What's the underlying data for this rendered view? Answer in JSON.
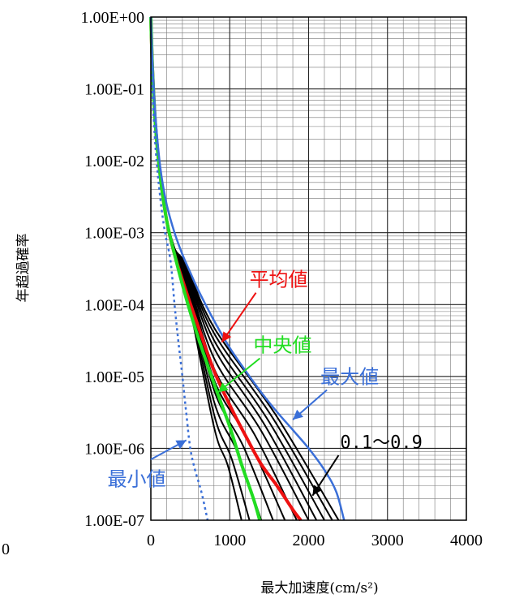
{
  "chart_data": {
    "type": "line",
    "xlabel": "最大加速度(cm/s²)",
    "ylabel": "年超過確率",
    "x_ticks": [
      "0",
      "1000",
      "2000",
      "3000",
      "4000"
    ],
    "extra_left_tick": "0",
    "y_ticks": [
      "1.00E+00",
      "1.00E-01",
      "1.00E-02",
      "1.00E-03",
      "1.00E-04",
      "1.00E-05",
      "1.00E-06",
      "1.00E-07"
    ],
    "xlim": [
      0,
      4000
    ],
    "ylim": [
      1e-07,
      1
    ],
    "yscale": "log",
    "grid": true,
    "series": [
      {
        "name": "平均値",
        "color": "#ee1111",
        "width": 4,
        "points": [
          [
            0,
            1
          ],
          [
            20,
            0.2
          ],
          [
            60,
            0.03
          ],
          [
            120,
            0.006
          ],
          [
            200,
            0.0015
          ],
          [
            300,
            0.0005
          ],
          [
            450,
            0.00015
          ],
          [
            600,
            5e-05
          ],
          [
            800,
            1.2e-05
          ],
          [
            1000,
            4e-06
          ],
          [
            1200,
            1.5e-06
          ],
          [
            1400,
            6e-07
          ],
          [
            1600,
            3e-07
          ],
          [
            1800,
            1.4e-07
          ],
          [
            1900,
            1e-07
          ]
        ]
      },
      {
        "name": "中央値",
        "color": "#22dd22",
        "width": 4,
        "points": [
          [
            0,
            1
          ],
          [
            20,
            0.2
          ],
          [
            60,
            0.03
          ],
          [
            120,
            0.006
          ],
          [
            200,
            0.0015
          ],
          [
            300,
            0.0005
          ],
          [
            450,
            0.00012
          ],
          [
            600,
            3.5e-05
          ],
          [
            800,
            8e-06
          ],
          [
            1000,
            2e-06
          ],
          [
            1150,
            6e-07
          ],
          [
            1300,
            2e-07
          ],
          [
            1380,
            1e-07
          ]
        ]
      },
      {
        "name": "最大値",
        "color": "#3a6fd8",
        "width": 2.5,
        "points": [
          [
            0,
            1
          ],
          [
            20,
            0.25
          ],
          [
            60,
            0.04
          ],
          [
            120,
            0.008
          ],
          [
            200,
            0.0025
          ],
          [
            300,
            0.001
          ],
          [
            400,
            0.0005
          ],
          [
            500,
            0.00028
          ],
          [
            600,
            0.00016
          ],
          [
            800,
            6e-05
          ],
          [
            1000,
            2.5e-05
          ],
          [
            1200,
            1.2e-05
          ],
          [
            1400,
            6e-06
          ],
          [
            1600,
            3.2e-06
          ],
          [
            1800,
            1.8e-06
          ],
          [
            2000,
            1e-06
          ],
          [
            2200,
            5e-07
          ],
          [
            2350,
            2.5e-07
          ],
          [
            2450,
            1e-07
          ]
        ]
      },
      {
        "name": "最小値",
        "color": "#3a6fd8",
        "width": 2.5,
        "dash": true,
        "points": [
          [
            0,
            1
          ],
          [
            20,
            0.1
          ],
          [
            60,
            0.015
          ],
          [
            120,
            0.003
          ],
          [
            180,
            0.001
          ],
          [
            250,
            0.0004
          ],
          [
            300,
            0.0001
          ],
          [
            350,
            3e-05
          ],
          [
            400,
            1e-05
          ],
          [
            450,
            3e-06
          ],
          [
            500,
            1e-06
          ],
          [
            560,
            5e-07
          ],
          [
            640,
            2.5e-07
          ],
          [
            720,
            1e-07
          ]
        ]
      }
    ],
    "fractile_series": {
      "label": "0.1～0.9",
      "color": "#000000",
      "width": 2,
      "end_x": [
        1150,
        1250,
        1400,
        1550,
        1700,
        1850,
        2000,
        2100,
        2200,
        2300,
        2380
      ],
      "mid_y_at_800": [
        2e-06,
        3e-06,
        4.5e-06,
        6.5e-06,
        9e-06,
        1.3e-05,
        1.8e-05,
        2.5e-05,
        3.2e-05,
        4e-05,
        4.8e-05
      ]
    },
    "annotations": [
      {
        "text": "平均値",
        "color": "#ee1111",
        "x": 1250,
        "y": 0.00018,
        "arrow_to": [
          900,
          3e-05
        ]
      },
      {
        "text": "中央値",
        "color": "#22dd22",
        "x": 1300,
        "y": 2.2e-05,
        "arrow_to": [
          850,
          6e-06
        ]
      },
      {
        "text": "最大値",
        "color": "#3a6fd8",
        "x": 2150,
        "y": 8e-06,
        "arrow_to": [
          1800,
          2.5e-06
        ]
      },
      {
        "text": "最小値",
        "color": "#3a6fd8",
        "x": -550,
        "y": 3e-07,
        "arrow_to": [
          450,
          1.3e-06
        ],
        "arrow_from": [
          0,
          7e-07
        ]
      },
      {
        "text": "0.1～0.9",
        "color": "#000000",
        "x": 2400,
        "y": 1e-06,
        "arrow_to": [
          2050,
          2.2e-07
        ],
        "arrow_from": [
          2380,
          8e-07
        ]
      }
    ]
  }
}
